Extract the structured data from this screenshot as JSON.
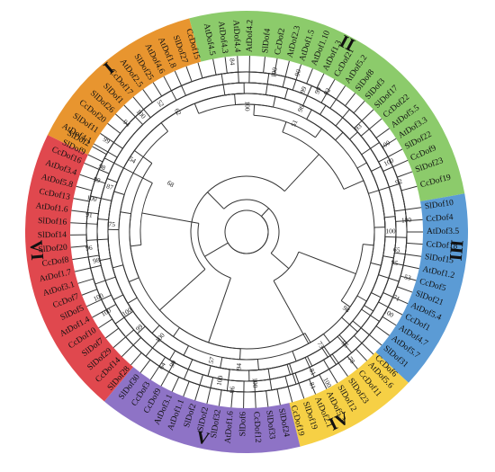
{
  "center": "center",
  "colors": {
    "group_I": "#E8952F",
    "group_II": "#8CCB6B",
    "group_III": "#5B9BD5",
    "group_IV": "#F6D045",
    "group_V": "#8E73C6",
    "group_VI": "#E0484E"
  },
  "groups": [
    {
      "key": "I",
      "label": "I",
      "color": "#E8952F",
      "start": 296,
      "end": 345,
      "label_angle": 320
    },
    {
      "key": "II",
      "label": "II",
      "color": "#8CCB6B",
      "start": 345,
      "end": 80,
      "label_angle": 28
    },
    {
      "key": "III",
      "label": "III",
      "color": "#5B9BD5",
      "start": 80,
      "end": 133,
      "label_angle": 95
    },
    {
      "key": "IV",
      "label": "IV",
      "color": "#F6D045",
      "start": 133,
      "end": 166,
      "label_angle": 154
    },
    {
      "key": "V",
      "label": "V",
      "color": "#8E73C6",
      "start": 166,
      "end": 220,
      "label_angle": 192
    },
    {
      "key": "VI",
      "label": "VI",
      "color": "#E0484E",
      "start": 220,
      "end": 296,
      "label_angle": 265
    }
  ],
  "leaves": [
    {
      "label": "CcDof15",
      "angle": 344
    },
    {
      "label": "SlDof27",
      "angle": 340
    },
    {
      "label": "AtDof1.8",
      "angle": 336
    },
    {
      "label": "AtDof4.6",
      "angle": 332
    },
    {
      "label": "SlDof25",
      "angle": 328
    },
    {
      "label": "AtDof2.5",
      "angle": 324
    },
    {
      "label": "CcDof17",
      "angle": 320
    },
    {
      "label": "SlDof1",
      "angle": 316
    },
    {
      "label": "SlDof26",
      "angle": 312
    },
    {
      "label": "CcDof20",
      "angle": 308
    },
    {
      "label": "SlDof11",
      "angle": 304
    },
    {
      "label": "AtDof4.1",
      "angle": 300
    },
    {
      "label": "AtDof4.5",
      "angle": 349
    },
    {
      "label": "AtDof4.3",
      "angle": 353
    },
    {
      "label": "AtDof4.4",
      "angle": 357
    },
    {
      "label": "AtDof4.2",
      "angle": 1
    },
    {
      "label": "SlDof4",
      "angle": 6
    },
    {
      "label": "CcDof2",
      "angle": 10
    },
    {
      "label": "AtDof2.3",
      "angle": 14
    },
    {
      "label": "AtDof1.5",
      "angle": 18
    },
    {
      "label": "AtDof1.10",
      "angle": 22
    },
    {
      "label": "AtDof1.3",
      "angle": 26
    },
    {
      "label": "CcDof21",
      "angle": 30
    },
    {
      "label": "AtDof5.2",
      "angle": 34
    },
    {
      "label": "SlDof8",
      "angle": 38
    },
    {
      "label": "SlDof3",
      "angle": 42
    },
    {
      "label": "SlDof17",
      "angle": 46
    },
    {
      "label": "CcDof22",
      "angle": 50
    },
    {
      "label": "AtDof5.5",
      "angle": 54
    },
    {
      "label": "AtDof3.3",
      "angle": 58
    },
    {
      "label": "SlDof22",
      "angle": 62
    },
    {
      "label": "CcDof9",
      "angle": 66
    },
    {
      "label": "SlDof23",
      "angle": 70
    },
    {
      "label": "CcDof19",
      "angle": 75
    },
    {
      "label": "SlDof10",
      "angle": 82
    },
    {
      "label": "CcDof4",
      "angle": 86
    },
    {
      "label": "AtDof3.5",
      "angle": 90
    },
    {
      "label": "CcDof18",
      "angle": 94
    },
    {
      "label": "SlDof15",
      "angle": 98
    },
    {
      "label": "AtDof1.2",
      "angle": 102
    },
    {
      "label": "CcDof5",
      "angle": 106
    },
    {
      "label": "SlDof21",
      "angle": 110
    },
    {
      "label": "AtDof5.4",
      "angle": 114
    },
    {
      "label": "CcDof1",
      "angle": 118
    },
    {
      "label": "AtDof4.7",
      "angle": 122
    },
    {
      "label": "AtDof5.7",
      "angle": 126
    },
    {
      "label": "SlDof31",
      "angle": 130
    },
    {
      "label": "CcDof6",
      "angle": 134
    },
    {
      "label": "AtDof5.6",
      "angle": 137
    },
    {
      "label": "CcDof11",
      "angle": 141
    },
    {
      "label": "SlDof23",
      "angle": 145
    },
    {
      "label": "SlDof12",
      "angle": 149
    },
    {
      "label": "AtDof5.3",
      "angle": 153
    },
    {
      "label": "AtDof2.1",
      "angle": 157
    },
    {
      "label": "SlDof19",
      "angle": 161
    },
    {
      "label": "CcDof19",
      "angle": 165
    },
    {
      "label": "SlDof24",
      "angle": 169
    },
    {
      "label": "SlDof33",
      "angle": 173
    },
    {
      "label": "CcDof12",
      "angle": 177
    },
    {
      "label": "SlDof6",
      "angle": 181
    },
    {
      "label": "AtDof1.6",
      "angle": 185
    },
    {
      "label": "SlDof32",
      "angle": 189
    },
    {
      "label": "SlDof2",
      "angle": 193
    },
    {
      "label": "SlDof2",
      "angle": 197
    },
    {
      "label": "AtDof1.1",
      "angle": 201
    },
    {
      "label": "AtDof3.1",
      "angle": 205
    },
    {
      "label": "CcDof9",
      "angle": 209
    },
    {
      "label": "CcDof3",
      "angle": 213
    },
    {
      "label": "SlDof30",
      "angle": 217
    },
    {
      "label": "SlDof28",
      "angle": 221
    },
    {
      "label": "CcDof14",
      "angle": 225
    },
    {
      "label": "SlDof29",
      "angle": 229
    },
    {
      "label": "SlDof7",
      "angle": 233
    },
    {
      "label": "CcDof10",
      "angle": 237
    },
    {
      "label": "AtDof1.4",
      "angle": 241
    },
    {
      "label": "SlDof5",
      "angle": 245
    },
    {
      "label": "CcDof7",
      "angle": 249
    },
    {
      "label": "AtDof3.1",
      "angle": 253
    },
    {
      "label": "AtDof1.7",
      "angle": 257
    },
    {
      "label": "CcDof8",
      "angle": 261
    },
    {
      "label": "SlDof20",
      "angle": 265
    },
    {
      "label": "SlDof14",
      "angle": 269
    },
    {
      "label": "SlDof16",
      "angle": 273
    },
    {
      "label": "AtDof1.6",
      "angle": 277
    },
    {
      "label": "CcDof13",
      "angle": 281
    },
    {
      "label": "AtDof5.8",
      "angle": 285
    },
    {
      "label": "AtDof3.4",
      "angle": 289
    },
    {
      "label": "CcDof16",
      "angle": 293
    },
    {
      "label": "SlDof9",
      "angle": 296
    },
    {
      "label": "SlDof2",
      "angle": 299
    }
  ],
  "bootstrap": [
    {
      "value": "99",
      "angle": 303,
      "r": 186
    },
    {
      "value": "94",
      "angle": 312,
      "r": 180
    },
    {
      "value": "100",
      "angle": 318,
      "r": 176
    },
    {
      "value": "52",
      "angle": 326,
      "r": 172
    },
    {
      "value": "62",
      "angle": 330,
      "r": 154
    },
    {
      "value": "54",
      "angle": 302,
      "r": 150
    },
    {
      "value": "84",
      "angle": 355,
      "r": 190
    },
    {
      "value": "100",
      "angle": 360,
      "r": 140
    },
    {
      "value": "100",
      "angle": 10,
      "r": 180
    },
    {
      "value": "90",
      "angle": 18,
      "r": 186
    },
    {
      "value": "99",
      "angle": 22,
      "r": 170
    },
    {
      "value": "96",
      "angle": 24,
      "r": 150
    },
    {
      "value": "99",
      "angle": 27,
      "r": 176
    },
    {
      "value": "92",
      "angle": 30,
      "r": 180
    },
    {
      "value": "51",
      "angle": 24,
      "r": 132
    },
    {
      "value": "93",
      "angle": 47,
      "r": 170
    },
    {
      "value": "100",
      "angle": 58,
      "r": 182
    },
    {
      "value": "100",
      "angle": 64,
      "r": 176
    },
    {
      "value": "92",
      "angle": 72,
      "r": 178
    },
    {
      "value": "100",
      "angle": 86,
      "r": 178
    },
    {
      "value": "100",
      "angle": 90,
      "r": 160
    },
    {
      "value": "65",
      "angle": 97,
      "r": 168
    },
    {
      "value": "95",
      "angle": 102,
      "r": 168
    },
    {
      "value": "53",
      "angle": 106,
      "r": 186
    },
    {
      "value": "71",
      "angle": 114,
      "r": 182
    },
    {
      "value": "100",
      "angle": 120,
      "r": 182
    },
    {
      "value": "98",
      "angle": 128,
      "r": 140
    },
    {
      "value": "78",
      "angle": 141,
      "r": 184
    },
    {
      "value": "95",
      "angle": 139,
      "r": 166
    },
    {
      "value": "73",
      "angle": 147,
      "r": 150
    },
    {
      "value": "81",
      "angle": 155,
      "r": 172
    },
    {
      "value": "100",
      "angle": 152,
      "r": 190
    },
    {
      "value": "81",
      "angle": 157,
      "r": 186
    },
    {
      "value": "100",
      "angle": 177,
      "r": 168
    },
    {
      "value": "94",
      "angle": 183,
      "r": 150
    },
    {
      "value": "96",
      "angle": 185,
      "r": 176
    },
    {
      "value": "100",
      "angle": 190,
      "r": 168
    },
    {
      "value": "57",
      "angle": 195,
      "r": 148
    },
    {
      "value": "99",
      "angle": 209,
      "r": 168
    },
    {
      "value": "64",
      "angle": 212,
      "r": 176
    },
    {
      "value": "100",
      "angle": 219,
      "r": 152
    },
    {
      "value": "99",
      "angle": 228,
      "r": 160
    },
    {
      "value": "100",
      "angle": 240,
      "r": 180
    },
    {
      "value": "100",
      "angle": 246,
      "r": 180
    },
    {
      "value": "98",
      "angle": 259,
      "r": 170
    },
    {
      "value": "96",
      "angle": 264,
      "r": 176
    },
    {
      "value": "75",
      "angle": 273,
      "r": 150
    },
    {
      "value": "91",
      "angle": 276,
      "r": 176
    },
    {
      "value": "100",
      "angle": 282,
      "r": 176
    },
    {
      "value": "87",
      "angle": 288,
      "r": 160
    },
    {
      "value": "99",
      "angle": 289,
      "r": 176
    },
    {
      "value": "98",
      "angle": 294,
      "r": 176
    },
    {
      "value": "68",
      "angle": 302,
      "r": 100
    },
    {
      "value": "100",
      "angle": 236,
      "r": 160
    }
  ]
}
